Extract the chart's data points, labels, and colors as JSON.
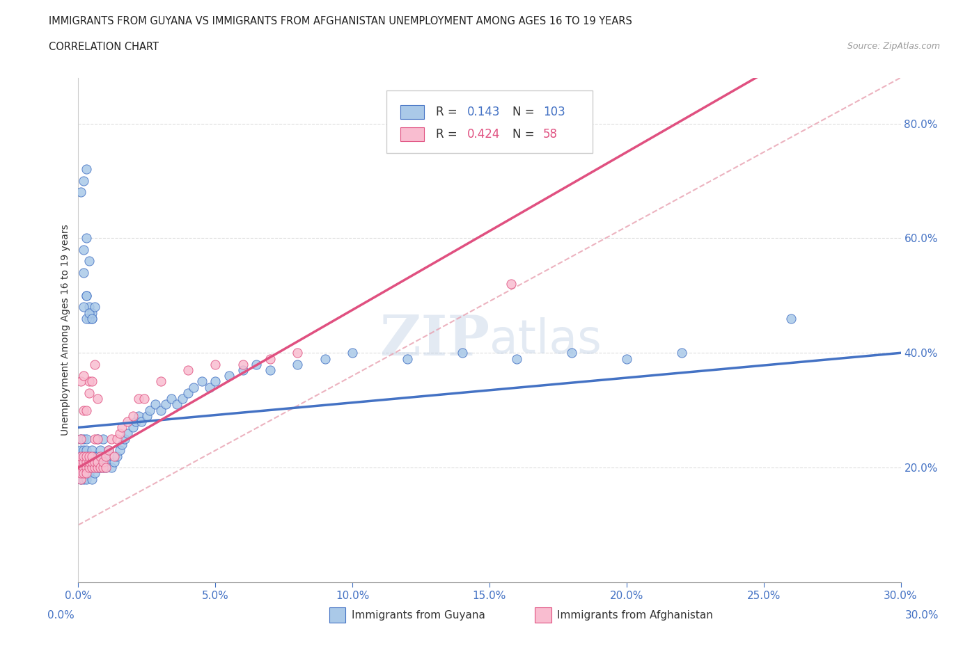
{
  "title": "IMMIGRANTS FROM GUYANA VS IMMIGRANTS FROM AFGHANISTAN UNEMPLOYMENT AMONG AGES 16 TO 19 YEARS",
  "subtitle": "CORRELATION CHART",
  "source": "Source: ZipAtlas.com",
  "ylabel": "Unemployment Among Ages 16 to 19 years",
  "xlim": [
    0.0,
    0.3
  ],
  "ylim": [
    0.0,
    0.88
  ],
  "xtick_vals": [
    0.0,
    0.05,
    0.1,
    0.15,
    0.2,
    0.25,
    0.3
  ],
  "ytick_right_vals": [
    0.2,
    0.4,
    0.6,
    0.8
  ],
  "guyana_R": 0.143,
  "guyana_N": 103,
  "afghanistan_R": 0.424,
  "afghanistan_N": 58,
  "guyana_color": "#aac9e8",
  "guyana_edge_color": "#4472c4",
  "afghanistan_color": "#f9bdd0",
  "afghanistan_edge_color": "#e05080",
  "axis_color": "#4472c4",
  "dashed_line_color": "#e8a0b0",
  "watermark": "ZIPatlas",
  "guyana_trend_x0": 0.0,
  "guyana_trend_y0": 0.27,
  "guyana_trend_x1": 0.3,
  "guyana_trend_y1": 0.4,
  "afghanistan_trend_x0": 0.0,
  "afghanistan_trend_y0": 0.2,
  "afghanistan_trend_x1": 0.1,
  "afghanistan_trend_y1": 0.475,
  "guyana_scatter_x": [
    0.001,
    0.001,
    0.001,
    0.001,
    0.001,
    0.001,
    0.001,
    0.002,
    0.002,
    0.002,
    0.002,
    0.002,
    0.002,
    0.002,
    0.003,
    0.003,
    0.003,
    0.003,
    0.003,
    0.003,
    0.004,
    0.004,
    0.004,
    0.004,
    0.005,
    0.005,
    0.005,
    0.005,
    0.005,
    0.006,
    0.006,
    0.006,
    0.006,
    0.007,
    0.007,
    0.007,
    0.007,
    0.008,
    0.008,
    0.008,
    0.009,
    0.009,
    0.009,
    0.01,
    0.01,
    0.01,
    0.011,
    0.012,
    0.013,
    0.014,
    0.015,
    0.016,
    0.017,
    0.018,
    0.02,
    0.021,
    0.022,
    0.023,
    0.025,
    0.026,
    0.028,
    0.03,
    0.032,
    0.034,
    0.036,
    0.038,
    0.04,
    0.042,
    0.045,
    0.048,
    0.05,
    0.055,
    0.06,
    0.065,
    0.07,
    0.08,
    0.09,
    0.1,
    0.12,
    0.14,
    0.16,
    0.18,
    0.2,
    0.22,
    0.001,
    0.002,
    0.003,
    0.002,
    0.003,
    0.004,
    0.002,
    0.003,
    0.004,
    0.005,
    0.002,
    0.003,
    0.004,
    0.005,
    0.003,
    0.004,
    0.005,
    0.006,
    0.26
  ],
  "guyana_scatter_y": [
    0.2,
    0.21,
    0.18,
    0.22,
    0.23,
    0.19,
    0.25,
    0.2,
    0.21,
    0.19,
    0.22,
    0.23,
    0.18,
    0.25,
    0.2,
    0.21,
    0.22,
    0.23,
    0.18,
    0.25,
    0.2,
    0.21,
    0.22,
    0.19,
    0.2,
    0.21,
    0.22,
    0.23,
    0.18,
    0.2,
    0.21,
    0.22,
    0.19,
    0.2,
    0.21,
    0.22,
    0.25,
    0.2,
    0.21,
    0.23,
    0.2,
    0.21,
    0.25,
    0.2,
    0.21,
    0.22,
    0.23,
    0.2,
    0.21,
    0.22,
    0.23,
    0.24,
    0.25,
    0.26,
    0.27,
    0.28,
    0.29,
    0.28,
    0.29,
    0.3,
    0.31,
    0.3,
    0.31,
    0.32,
    0.31,
    0.32,
    0.33,
    0.34,
    0.35,
    0.34,
    0.35,
    0.36,
    0.37,
    0.38,
    0.37,
    0.38,
    0.39,
    0.4,
    0.39,
    0.4,
    0.39,
    0.4,
    0.39,
    0.4,
    0.68,
    0.7,
    0.72,
    0.58,
    0.6,
    0.56,
    0.54,
    0.5,
    0.48,
    0.46,
    0.48,
    0.5,
    0.46,
    0.47,
    0.46,
    0.47,
    0.46,
    0.48,
    0.46
  ],
  "afghanistan_scatter_x": [
    0.001,
    0.001,
    0.001,
    0.001,
    0.001,
    0.001,
    0.002,
    0.002,
    0.002,
    0.002,
    0.002,
    0.003,
    0.003,
    0.003,
    0.003,
    0.004,
    0.004,
    0.004,
    0.004,
    0.005,
    0.005,
    0.005,
    0.006,
    0.006,
    0.006,
    0.007,
    0.007,
    0.007,
    0.008,
    0.008,
    0.009,
    0.009,
    0.01,
    0.01,
    0.011,
    0.012,
    0.013,
    0.014,
    0.015,
    0.016,
    0.018,
    0.02,
    0.022,
    0.024,
    0.03,
    0.04,
    0.05,
    0.06,
    0.07,
    0.08,
    0.001,
    0.002,
    0.003,
    0.004,
    0.005,
    0.006,
    0.007,
    0.158
  ],
  "afghanistan_scatter_y": [
    0.2,
    0.21,
    0.22,
    0.18,
    0.25,
    0.19,
    0.2,
    0.21,
    0.22,
    0.3,
    0.19,
    0.2,
    0.21,
    0.22,
    0.19,
    0.2,
    0.21,
    0.22,
    0.35,
    0.2,
    0.21,
    0.22,
    0.2,
    0.21,
    0.25,
    0.2,
    0.21,
    0.25,
    0.2,
    0.22,
    0.2,
    0.21,
    0.2,
    0.22,
    0.23,
    0.25,
    0.22,
    0.25,
    0.26,
    0.27,
    0.28,
    0.29,
    0.32,
    0.32,
    0.35,
    0.37,
    0.38,
    0.38,
    0.39,
    0.4,
    0.35,
    0.36,
    0.3,
    0.33,
    0.35,
    0.38,
    0.32,
    0.52
  ]
}
